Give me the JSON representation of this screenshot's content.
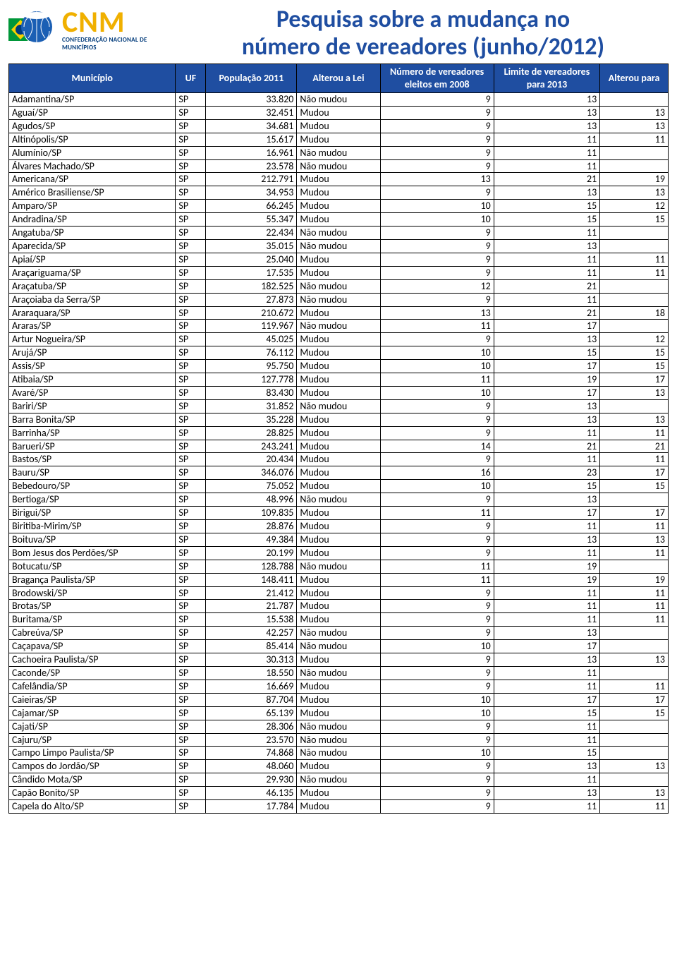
{
  "logo": {
    "acronym": "CNM",
    "subtitle": "CONFEDERAÇÃO NACIONAL DE MUNICÍPIOS"
  },
  "title_line1": "Pesquisa sobre a mudança no",
  "title_line2": "número de vereadores (junho/2012)",
  "title_color": "#1f4ea1",
  "header_bg": "#1f4ea1",
  "header_fg": "#ffffff",
  "border_color": "#000000",
  "columns": [
    "Município",
    "UF",
    "População 2011",
    "Alterou a Lei",
    "Número de vereadores eleitos em 2008",
    "Limite de vereadores para 2013",
    "Alterou para"
  ],
  "rows": [
    [
      "Adamantina/SP",
      "SP",
      "33.820",
      "Não mudou",
      "9",
      "13",
      ""
    ],
    [
      "Aguaí/SP",
      "SP",
      "32.451",
      "Mudou",
      "9",
      "13",
      "13"
    ],
    [
      "Agudos/SP",
      "SP",
      "34.681",
      "Mudou",
      "9",
      "13",
      "13"
    ],
    [
      "Altinópolis/SP",
      "SP",
      "15.617",
      "Mudou",
      "9",
      "11",
      "11"
    ],
    [
      "Alumínio/SP",
      "SP",
      "16.961",
      "Não mudou",
      "9",
      "11",
      ""
    ],
    [
      "Álvares Machado/SP",
      "SP",
      "23.578",
      "Não mudou",
      "9",
      "11",
      ""
    ],
    [
      "Americana/SP",
      "SP",
      "212.791",
      "Mudou",
      "13",
      "21",
      "19"
    ],
    [
      "Américo Brasiliense/SP",
      "SP",
      "34.953",
      "Mudou",
      "9",
      "13",
      "13"
    ],
    [
      "Amparo/SP",
      "SP",
      "66.245",
      "Mudou",
      "10",
      "15",
      "12"
    ],
    [
      "Andradina/SP",
      "SP",
      "55.347",
      "Mudou",
      "10",
      "15",
      "15"
    ],
    [
      "Angatuba/SP",
      "SP",
      "22.434",
      "Não mudou",
      "9",
      "11",
      ""
    ],
    [
      "Aparecida/SP",
      "SP",
      "35.015",
      "Não mudou",
      "9",
      "13",
      ""
    ],
    [
      "Apiaí/SP",
      "SP",
      "25.040",
      "Mudou",
      "9",
      "11",
      "11"
    ],
    [
      "Araçariguama/SP",
      "SP",
      "17.535",
      "Mudou",
      "9",
      "11",
      "11"
    ],
    [
      "Araçatuba/SP",
      "SP",
      "182.525",
      "Não mudou",
      "12",
      "21",
      ""
    ],
    [
      "Araçoiaba da Serra/SP",
      "SP",
      "27.873",
      "Não mudou",
      "9",
      "11",
      ""
    ],
    [
      "Araraquara/SP",
      "SP",
      "210.672",
      "Mudou",
      "13",
      "21",
      "18"
    ],
    [
      "Araras/SP",
      "SP",
      "119.967",
      "Não mudou",
      "11",
      "17",
      ""
    ],
    [
      "Artur Nogueira/SP",
      "SP",
      "45.025",
      "Mudou",
      "9",
      "13",
      "12"
    ],
    [
      "Arujá/SP",
      "SP",
      "76.112",
      "Mudou",
      "10",
      "15",
      "15"
    ],
    [
      "Assis/SP",
      "SP",
      "95.750",
      "Mudou",
      "10",
      "17",
      "15"
    ],
    [
      "Atibaia/SP",
      "SP",
      "127.778",
      "Mudou",
      "11",
      "19",
      "17"
    ],
    [
      "Avaré/SP",
      "SP",
      "83.430",
      "Mudou",
      "10",
      "17",
      "13"
    ],
    [
      "Bariri/SP",
      "SP",
      "31.852",
      "Não mudou",
      "9",
      "13",
      ""
    ],
    [
      "Barra Bonita/SP",
      "SP",
      "35.228",
      "Mudou",
      "9",
      "13",
      "13"
    ],
    [
      "Barrinha/SP",
      "SP",
      "28.825",
      "Mudou",
      "9",
      "11",
      "11"
    ],
    [
      "Barueri/SP",
      "SP",
      "243.241",
      "Mudou",
      "14",
      "21",
      "21"
    ],
    [
      "Bastos/SP",
      "SP",
      "20.434",
      "Mudou",
      "9",
      "11",
      "11"
    ],
    [
      "Bauru/SP",
      "SP",
      "346.076",
      "Mudou",
      "16",
      "23",
      "17"
    ],
    [
      "Bebedouro/SP",
      "SP",
      "75.052",
      "Mudou",
      "10",
      "15",
      "15"
    ],
    [
      "Bertioga/SP",
      "SP",
      "48.996",
      "Não mudou",
      "9",
      "13",
      ""
    ],
    [
      "Birigui/SP",
      "SP",
      "109.835",
      "Mudou",
      "11",
      "17",
      "17"
    ],
    [
      "Biritiba-Mirim/SP",
      "SP",
      "28.876",
      "Mudou",
      "9",
      "11",
      "11"
    ],
    [
      "Boituva/SP",
      "SP",
      "49.384",
      "Mudou",
      "9",
      "13",
      "13"
    ],
    [
      "Bom Jesus dos Perdões/SP",
      "SP",
      "20.199",
      "Mudou",
      "9",
      "11",
      "11"
    ],
    [
      "Botucatu/SP",
      "SP",
      "128.788",
      "Não mudou",
      "11",
      "19",
      ""
    ],
    [
      "Bragança Paulista/SP",
      "SP",
      "148.411",
      "Mudou",
      "11",
      "19",
      "19"
    ],
    [
      "Brodowski/SP",
      "SP",
      "21.412",
      "Mudou",
      "9",
      "11",
      "11"
    ],
    [
      "Brotas/SP",
      "SP",
      "21.787",
      "Mudou",
      "9",
      "11",
      "11"
    ],
    [
      "Buritama/SP",
      "SP",
      "15.538",
      "Mudou",
      "9",
      "11",
      "11"
    ],
    [
      "Cabreúva/SP",
      "SP",
      "42.257",
      "Não mudou",
      "9",
      "13",
      ""
    ],
    [
      "Caçapava/SP",
      "SP",
      "85.414",
      "Não mudou",
      "10",
      "17",
      ""
    ],
    [
      "Cachoeira Paulista/SP",
      "SP",
      "30.313",
      "Mudou",
      "9",
      "13",
      "13"
    ],
    [
      "Caconde/SP",
      "SP",
      "18.550",
      "Não mudou",
      "9",
      "11",
      ""
    ],
    [
      "Cafelândia/SP",
      "SP",
      "16.669",
      "Mudou",
      "9",
      "11",
      "11"
    ],
    [
      "Caieiras/SP",
      "SP",
      "87.704",
      "Mudou",
      "10",
      "17",
      "17"
    ],
    [
      "Cajamar/SP",
      "SP",
      "65.139",
      "Mudou",
      "10",
      "15",
      "15"
    ],
    [
      "Cajati/SP",
      "SP",
      "28.306",
      "Não mudou",
      "9",
      "11",
      ""
    ],
    [
      "Cajuru/SP",
      "SP",
      "23.570",
      "Não mudou",
      "9",
      "11",
      ""
    ],
    [
      "Campo Limpo Paulista/SP",
      "SP",
      "74.868",
      "Não mudou",
      "10",
      "15",
      ""
    ],
    [
      "Campos do Jordão/SP",
      "SP",
      "48.060",
      "Mudou",
      "9",
      "13",
      "13"
    ],
    [
      "Cândido Mota/SP",
      "SP",
      "29.930",
      "Não mudou",
      "9",
      "11",
      ""
    ],
    [
      "Capão Bonito/SP",
      "SP",
      "46.135",
      "Mudou",
      "9",
      "13",
      "13"
    ],
    [
      "Capela do Alto/SP",
      "SP",
      "17.784",
      "Mudou",
      "9",
      "11",
      "11"
    ]
  ]
}
